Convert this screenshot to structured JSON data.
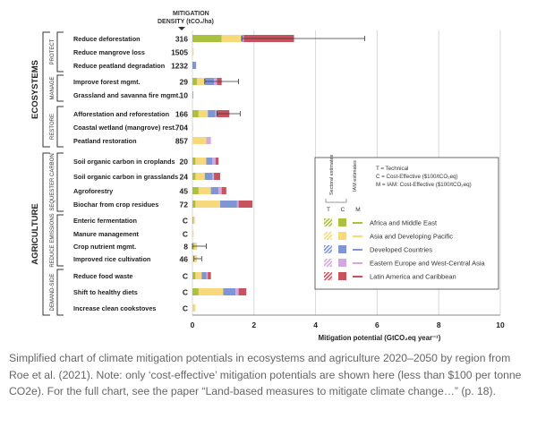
{
  "chart_data": {
    "type": "bar",
    "orientation": "horizontal",
    "stacked": true,
    "density_header": "MITIGATION DENSITY (tCO₂/ha)",
    "xlabel": "Mitigation potential (GtCO₂eq year⁻¹)",
    "xlim": [
      0,
      10
    ],
    "xticks": [
      "0",
      "2",
      "4",
      "6",
      "8",
      "10"
    ],
    "xtick_values": [
      0,
      2,
      4,
      6,
      8,
      10
    ],
    "grid": "vertical",
    "sectors": [
      {
        "name": "ECOSYSTEMS",
        "groups": [
          {
            "name": "PROTECT",
            "rows": [
              "reduce_deforestation",
              "reduce_mangrove_loss",
              "reduce_peatland"
            ]
          },
          {
            "name": "MANAGE",
            "rows": [
              "forest_mgmt",
              "grassland_fire"
            ]
          },
          {
            "name": "RESTORE",
            "rows": [
              "afforestation",
              "coastal_wetland",
              "peatland_restoration"
            ]
          }
        ]
      },
      {
        "name": "AGRICULTURE",
        "groups": [
          {
            "name": "SEQUESTER CARBON",
            "rows": [
              "soc_croplands",
              "soc_grasslands",
              "agroforestry",
              "biochar"
            ]
          },
          {
            "name": "REDUCE EMISSIONS",
            "rows": [
              "enteric",
              "manure",
              "crop_nutrient",
              "rice"
            ]
          },
          {
            "name": "DEMAND-SIDE",
            "rows": [
              "food_waste",
              "healthy_diets",
              "cookstoves"
            ]
          }
        ]
      }
    ],
    "region_colors": {
      "africa_middle_east": "#a9c13f",
      "asia_developing_pacific": "#f7d97c",
      "developed_countries": "#7f95d4",
      "eastern_europe_west_central_asia": "#d6a6e3",
      "latin_america_caribbean": "#c8535e"
    },
    "rows": [
      {
        "id": "reduce_deforestation",
        "label": "Reduce deforestation",
        "density": "316",
        "error": [
          1.6,
          5.6
        ],
        "segments": [
          {
            "region": "latin_america_caribbean",
            "value": 0
          },
          {
            "region": "africa_middle_east",
            "value": 0.95
          },
          {
            "region": "asia_developing_pacific",
            "value": 0.65
          },
          {
            "region": "developed_countries",
            "value": 0.05
          },
          {
            "region": "eastern_europe_west_central_asia",
            "value": 0.02
          },
          {
            "region": "latin_america_caribbean",
            "value": 1.63
          }
        ]
      },
      {
        "id": "reduce_mangrove_loss",
        "label": "Reduce mangrove loss",
        "density": "1505",
        "error": null,
        "segments": [
          {
            "region": "asia_developing_pacific",
            "value": 0.04
          }
        ]
      },
      {
        "id": "reduce_peatland",
        "label": "Reduce peatland degradation",
        "density": "1232",
        "error": null,
        "segments": [
          {
            "region": "developed_countries",
            "value": 0.12
          }
        ]
      },
      {
        "id": "forest_mgmt",
        "label": "Improve forest mgmt.",
        "density": "29",
        "error": [
          0.4,
          1.5
        ],
        "segments": [
          {
            "region": "africa_middle_east",
            "value": 0.15
          },
          {
            "region": "asia_developing_pacific",
            "value": 0.25
          },
          {
            "region": "developed_countries",
            "value": 0.3
          },
          {
            "region": "eastern_europe_west_central_asia",
            "value": 0.1
          },
          {
            "region": "latin_america_caribbean",
            "value": 0.15
          }
        ]
      },
      {
        "id": "grassland_fire",
        "label": "Grassland and savanna fire mgmt.",
        "density": "10",
        "error": null,
        "segments": [
          {
            "region": "africa_middle_east",
            "value": 0.03
          }
        ]
      },
      {
        "id": "afforestation",
        "label": "Afforestation and reforestation",
        "density": "166",
        "error": [
          0.8,
          1.55
        ],
        "segments": [
          {
            "region": "africa_middle_east",
            "value": 0.2
          },
          {
            "region": "asia_developing_pacific",
            "value": 0.3
          },
          {
            "region": "developed_countries",
            "value": 0.25
          },
          {
            "region": "eastern_europe_west_central_asia",
            "value": 0.05
          },
          {
            "region": "latin_america_caribbean",
            "value": 0.4
          }
        ]
      },
      {
        "id": "coastal_wetland",
        "label": "Coastal wetland (mangrove) rest.",
        "density": "704",
        "error": null,
        "segments": [
          {
            "region": "asia_developing_pacific",
            "value": 0.02
          }
        ]
      },
      {
        "id": "peatland_restoration",
        "label": "Peatland restoration",
        "density": "857",
        "error": null,
        "segments": [
          {
            "region": "asia_developing_pacific",
            "value": 0.45
          },
          {
            "region": "eastern_europe_west_central_asia",
            "value": 0.15
          }
        ]
      },
      {
        "id": "soc_croplands",
        "label": "Soil organic carbon in croplands",
        "density": "20",
        "error": null,
        "segments": [
          {
            "region": "africa_middle_east",
            "value": 0.1
          },
          {
            "region": "asia_developing_pacific",
            "value": 0.35
          },
          {
            "region": "developed_countries",
            "value": 0.2
          },
          {
            "region": "eastern_europe_west_central_asia",
            "value": 0.1
          },
          {
            "region": "latin_america_caribbean",
            "value": 0.1
          }
        ]
      },
      {
        "id": "soc_grasslands",
        "label": "Soil organic carbon in grasslands",
        "density": "24",
        "error": null,
        "segments": [
          {
            "region": "africa_middle_east",
            "value": 0.1
          },
          {
            "region": "asia_developing_pacific",
            "value": 0.3
          },
          {
            "region": "developed_countries",
            "value": 0.25
          },
          {
            "region": "eastern_europe_west_central_asia",
            "value": 0.05
          },
          {
            "region": "latin_america_caribbean",
            "value": 0.2
          }
        ]
      },
      {
        "id": "agroforestry",
        "label": "Agroforestry",
        "density": "45",
        "error": null,
        "segments": [
          {
            "region": "africa_middle_east",
            "value": 0.2
          },
          {
            "region": "asia_developing_pacific",
            "value": 0.4
          },
          {
            "region": "developed_countries",
            "value": 0.25
          },
          {
            "region": "eastern_europe_west_central_asia",
            "value": 0.1
          },
          {
            "region": "latin_america_caribbean",
            "value": 0.15
          }
        ]
      },
      {
        "id": "biochar",
        "label": "Biochar from crop residues",
        "density": "72",
        "error": null,
        "segments": [
          {
            "region": "africa_middle_east",
            "value": 0.1
          },
          {
            "region": "asia_developing_pacific",
            "value": 0.8
          },
          {
            "region": "developed_countries",
            "value": 0.55
          },
          {
            "region": "eastern_europe_west_central_asia",
            "value": 0.05
          },
          {
            "region": "latin_america_caribbean",
            "value": 0.45
          }
        ]
      },
      {
        "id": "enteric",
        "label": "Enteric fermentation",
        "density": "C",
        "error": null,
        "segments": [
          {
            "region": "africa_middle_east",
            "value": 0.03
          },
          {
            "region": "asia_developing_pacific",
            "value": 0.05
          }
        ]
      },
      {
        "id": "manure",
        "label": "Manure management",
        "density": "C",
        "error": null,
        "segments": [
          {
            "region": "asia_developing_pacific",
            "value": 0.04
          }
        ]
      },
      {
        "id": "crop_nutrient",
        "label": "Crop nutrient mgmt.",
        "density": "8",
        "error": [
          0,
          0.45
        ],
        "segments": [
          {
            "region": "africa_middle_east",
            "value": 0.05
          },
          {
            "region": "asia_developing_pacific",
            "value": 0.1
          }
        ]
      },
      {
        "id": "rice",
        "label": "Improved rice cultivation",
        "density": "46",
        "error": [
          0.05,
          0.3
        ],
        "segments": [
          {
            "region": "asia_developing_pacific",
            "value": 0.15
          }
        ]
      },
      {
        "id": "food_waste",
        "label": "Reduce food waste",
        "density": "C",
        "error": null,
        "segments": [
          {
            "region": "africa_middle_east",
            "value": 0.1
          },
          {
            "region": "asia_developing_pacific",
            "value": 0.2
          },
          {
            "region": "developed_countries",
            "value": 0.15
          },
          {
            "region": "eastern_europe_west_central_asia",
            "value": 0.05
          },
          {
            "region": "latin_america_caribbean",
            "value": 0.1
          }
        ]
      },
      {
        "id": "healthy_diets",
        "label": "Shift to healthy diets",
        "density": "C",
        "error": null,
        "segments": [
          {
            "region": "africa_middle_east",
            "value": 0.2
          },
          {
            "region": "asia_developing_pacific",
            "value": 0.8
          },
          {
            "region": "developed_countries",
            "value": 0.4
          },
          {
            "region": "eastern_europe_west_central_asia",
            "value": 0.1
          },
          {
            "region": "latin_america_caribbean",
            "value": 0.25
          }
        ]
      },
      {
        "id": "cookstoves",
        "label": "Increase clean cookstoves",
        "density": "C",
        "error": null,
        "segments": [
          {
            "region": "asia_developing_pacific",
            "value": 0.1
          }
        ]
      }
    ],
    "legend": {
      "placement": "right",
      "column_headers": [
        "Sectoral estimates",
        "IAM estimates"
      ],
      "column_letters": [
        "T",
        "C",
        "M"
      ],
      "key": [
        "T = Technical",
        "C = Cost-Effective ($100/tCO₂eq)",
        "M = IAM: Cost-Effective ($100/tCO₂eq)"
      ],
      "entries": [
        {
          "region": "africa_middle_east",
          "label": "Africa and Middle East"
        },
        {
          "region": "asia_developing_pacific",
          "label": "Asia and Developing Pacific"
        },
        {
          "region": "developed_countries",
          "label": "Developed Countries"
        },
        {
          "region": "eastern_europe_west_central_asia",
          "label": "Eastern Europe and West-Central Asia"
        },
        {
          "region": "latin_america_caribbean",
          "label": "Latin America and Caribbean"
        }
      ]
    }
  },
  "caption": "Simplified chart of climate mitigation potentials in ecosystems and agriculture 2020–2050 by region from Roe et al. (2021). Note: only ‘cost-effective’ mitigation potentials are shown here (less than $100 per tonne CO2e). For the full chart, see the paper “Land-based measures to mitigate climate change…” (p. 18)."
}
